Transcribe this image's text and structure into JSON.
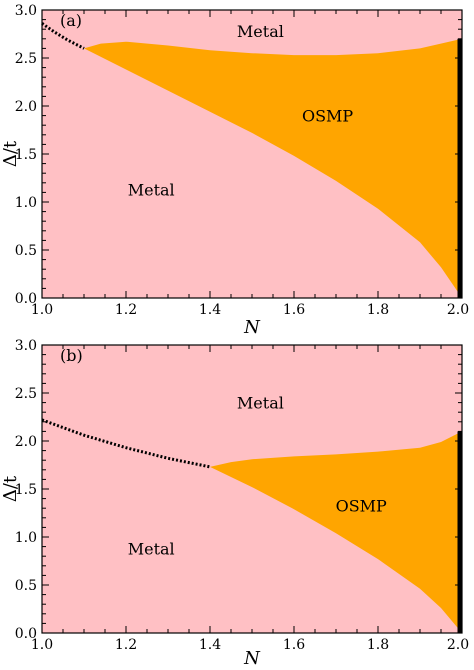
{
  "chart_data": [
    {
      "type": "area",
      "panel_label": "(a)",
      "xlabel": "N",
      "ylabel": "Δ/t",
      "xlim": [
        1.0,
        2.0
      ],
      "ylim": [
        0.0,
        3.0
      ],
      "xticks": [
        "1.0",
        "1.2",
        "1.4",
        "1.6",
        "1.8",
        "2.0"
      ],
      "yticks": [
        "0.0",
        "0.5",
        "1.0",
        "1.5",
        "2.0",
        "2.5",
        "3.0"
      ],
      "colors": {
        "metal": "#ffc0c4",
        "osmp": "#ffa500",
        "line": "#000000"
      },
      "region_labels": [
        {
          "text": "Metal",
          "x": 1.52,
          "y": 2.78
        },
        {
          "text": "OSMP",
          "x": 1.68,
          "y": 1.9
        },
        {
          "text": "Metal",
          "x": 1.26,
          "y": 1.13
        }
      ],
      "osmp_upper": [
        [
          1.1,
          2.6
        ],
        [
          1.14,
          2.65
        ],
        [
          1.2,
          2.67
        ],
        [
          1.3,
          2.63
        ],
        [
          1.4,
          2.58
        ],
        [
          1.5,
          2.55
        ],
        [
          1.6,
          2.53
        ],
        [
          1.7,
          2.53
        ],
        [
          1.8,
          2.55
        ],
        [
          1.9,
          2.6
        ],
        [
          1.96,
          2.66
        ],
        [
          2.0,
          2.7
        ]
      ],
      "osmp_lower": [
        [
          1.1,
          2.6
        ],
        [
          1.2,
          2.38
        ],
        [
          1.3,
          2.16
        ],
        [
          1.4,
          1.94
        ],
        [
          1.5,
          1.72
        ],
        [
          1.6,
          1.48
        ],
        [
          1.7,
          1.22
        ],
        [
          1.8,
          0.93
        ],
        [
          1.9,
          0.58
        ],
        [
          1.95,
          0.32
        ],
        [
          2.0,
          0.0
        ]
      ],
      "dotted_line": [
        [
          1.0,
          2.86
        ],
        [
          1.03,
          2.77
        ],
        [
          1.06,
          2.69
        ],
        [
          1.1,
          2.6
        ]
      ],
      "thick_line": {
        "x": 2.0,
        "y": [
          0.0,
          2.7
        ]
      }
    },
    {
      "type": "area",
      "panel_label": "(b)",
      "xlabel": "N",
      "ylabel": "Δ/t",
      "xlim": [
        1.0,
        2.0
      ],
      "ylim": [
        0.0,
        3.0
      ],
      "xticks": [
        "1.0",
        "1.2",
        "1.4",
        "1.6",
        "1.8",
        "2.0"
      ],
      "yticks": [
        "0.0",
        "0.5",
        "1.0",
        "1.5",
        "2.0",
        "2.5",
        "3.0"
      ],
      "colors": {
        "metal": "#ffc0c4",
        "osmp": "#ffa500",
        "line": "#000000"
      },
      "region_labels": [
        {
          "text": "Metal",
          "x": 1.52,
          "y": 2.4
        },
        {
          "text": "OSMP",
          "x": 1.76,
          "y": 1.33
        },
        {
          "text": "Metal",
          "x": 1.26,
          "y": 0.88
        }
      ],
      "osmp_upper": [
        [
          1.4,
          1.73
        ],
        [
          1.45,
          1.78
        ],
        [
          1.5,
          1.81
        ],
        [
          1.6,
          1.84
        ],
        [
          1.7,
          1.86
        ],
        [
          1.8,
          1.89
        ],
        [
          1.9,
          1.93
        ],
        [
          1.95,
          1.99
        ],
        [
          2.0,
          2.1
        ]
      ],
      "osmp_lower": [
        [
          1.4,
          1.73
        ],
        [
          1.5,
          1.52
        ],
        [
          1.6,
          1.29
        ],
        [
          1.7,
          1.04
        ],
        [
          1.8,
          0.77
        ],
        [
          1.9,
          0.46
        ],
        [
          1.95,
          0.26
        ],
        [
          2.0,
          0.0
        ]
      ],
      "dotted_line": [
        [
          1.0,
          2.22
        ],
        [
          1.1,
          2.06
        ],
        [
          1.2,
          1.93
        ],
        [
          1.3,
          1.82
        ],
        [
          1.4,
          1.73
        ]
      ],
      "thick_line": {
        "x": 2.0,
        "y": [
          0.0,
          2.1
        ]
      }
    }
  ]
}
